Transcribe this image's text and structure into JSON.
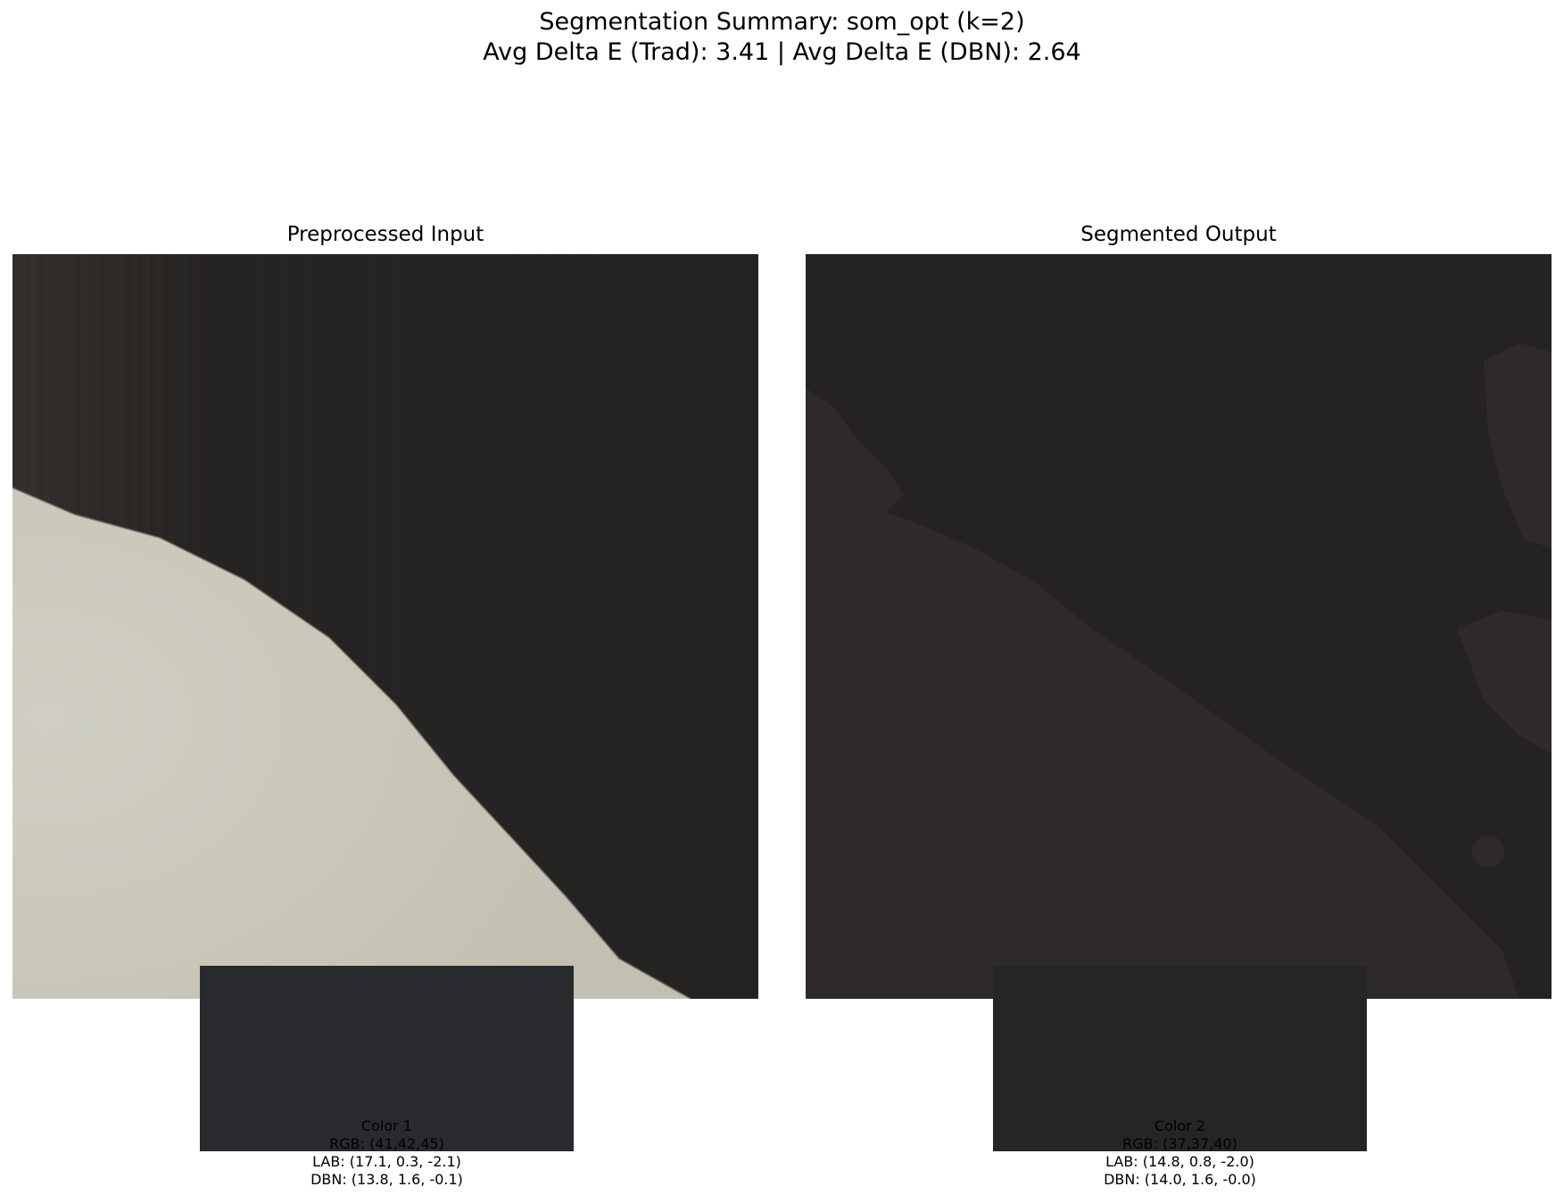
{
  "header": {
    "title_line1": "Segmentation Summary: som_opt (k=2)",
    "title_line2": "Avg Delta E (Trad): 3.41 | Avg Delta E (DBN): 2.64"
  },
  "panels": {
    "input_title": "Preprocessed Input",
    "output_title": "Segmented Output"
  },
  "colors": [
    {
      "name": "Color 1",
      "rgb": "RGB: (41,42,45)",
      "lab": "LAB: (17.1, 0.3, -2.1)",
      "dbn": "DBN: (13.8, 1.6, -0.1)",
      "hex": "#292a2d"
    },
    {
      "name": "Color 2",
      "rgb": "RGB: (37,37,40)",
      "lab": "LAB: (14.8, 0.8, -2.0)",
      "dbn": "DBN: (14.0, 1.6, -0.0)",
      "hex": "#252528"
    }
  ],
  "palette": {
    "input_dark": "#272523",
    "input_light": "#c8c6b8",
    "output_dark": "#242321",
    "output_light": "#2e2a29"
  }
}
